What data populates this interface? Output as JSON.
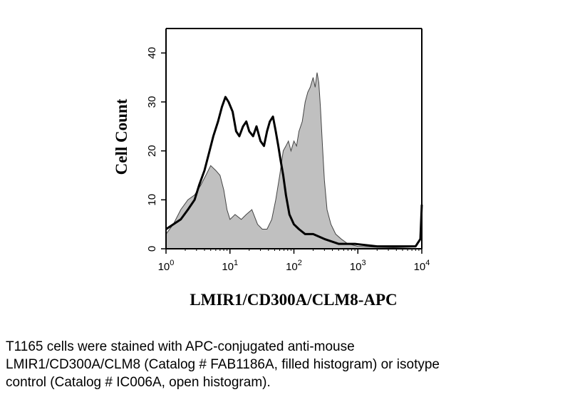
{
  "chart_data": {
    "type": "area",
    "title": "",
    "xlabel": "LMIR1/CD300A/CLM8-APC",
    "ylabel": "Cell Count",
    "x_scale": "log",
    "xlim": [
      1,
      10000
    ],
    "ylim": [
      0,
      45
    ],
    "x_ticks": [
      {
        "value": 1,
        "base": "10",
        "exp": "0"
      },
      {
        "value": 10,
        "base": "10",
        "exp": "1"
      },
      {
        "value": 100,
        "base": "10",
        "exp": "2"
      },
      {
        "value": 1000,
        "base": "10",
        "exp": "3"
      },
      {
        "value": 10000,
        "base": "10",
        "exp": "4"
      }
    ],
    "y_ticks": [
      0,
      10,
      20,
      30,
      40
    ],
    "grid": false,
    "legend": "none",
    "series": [
      {
        "style": "filled",
        "color": "#c0c0c0",
        "points": [
          [
            1,
            3
          ],
          [
            1.3,
            5
          ],
          [
            1.7,
            8
          ],
          [
            2.2,
            10
          ],
          [
            2.8,
            11
          ],
          [
            3.5,
            13
          ],
          [
            4.2,
            15
          ],
          [
            5,
            17
          ],
          [
            6,
            16
          ],
          [
            7,
            15
          ],
          [
            8,
            12
          ],
          [
            9,
            8
          ],
          [
            10,
            6
          ],
          [
            12,
            7
          ],
          [
            15,
            6
          ],
          [
            18,
            7
          ],
          [
            22,
            8
          ],
          [
            27,
            5
          ],
          [
            32,
            4
          ],
          [
            38,
            4
          ],
          [
            45,
            6
          ],
          [
            52,
            10
          ],
          [
            60,
            15
          ],
          [
            68,
            20
          ],
          [
            75,
            21
          ],
          [
            82,
            22
          ],
          [
            90,
            20
          ],
          [
            100,
            22
          ],
          [
            110,
            21
          ],
          [
            120,
            24
          ],
          [
            135,
            26
          ],
          [
            150,
            30
          ],
          [
            165,
            32
          ],
          [
            180,
            33
          ],
          [
            200,
            35
          ],
          [
            215,
            33
          ],
          [
            230,
            36
          ],
          [
            245,
            34
          ],
          [
            260,
            29
          ],
          [
            280,
            21
          ],
          [
            300,
            14
          ],
          [
            330,
            8
          ],
          [
            380,
            5
          ],
          [
            450,
            3
          ],
          [
            550,
            2
          ],
          [
            700,
            1
          ],
          [
            1000,
            0.5
          ],
          [
            2000,
            0.3
          ],
          [
            4000,
            0.2
          ],
          [
            10000,
            0
          ]
        ]
      },
      {
        "style": "open",
        "color": "#000000",
        "points": [
          [
            1,
            4
          ],
          [
            1.3,
            5
          ],
          [
            1.7,
            6
          ],
          [
            2.2,
            8
          ],
          [
            2.8,
            10
          ],
          [
            3.3,
            13
          ],
          [
            4,
            16
          ],
          [
            4.8,
            20
          ],
          [
            5.5,
            23
          ],
          [
            6.5,
            26
          ],
          [
            7.5,
            29
          ],
          [
            8.5,
            31
          ],
          [
            9.5,
            30
          ],
          [
            11,
            28
          ],
          [
            12.5,
            24
          ],
          [
            14,
            23
          ],
          [
            16,
            25
          ],
          [
            18,
            26
          ],
          [
            20,
            24
          ],
          [
            23,
            23
          ],
          [
            26,
            25
          ],
          [
            30,
            22
          ],
          [
            34,
            21
          ],
          [
            38,
            24
          ],
          [
            42,
            26
          ],
          [
            47,
            27
          ],
          [
            52,
            24
          ],
          [
            57,
            21
          ],
          [
            62,
            18
          ],
          [
            68,
            15
          ],
          [
            75,
            11
          ],
          [
            85,
            7
          ],
          [
            100,
            5
          ],
          [
            120,
            4
          ],
          [
            150,
            3
          ],
          [
            200,
            3
          ],
          [
            300,
            2
          ],
          [
            500,
            1
          ],
          [
            900,
            1
          ],
          [
            2000,
            0.5
          ],
          [
            5000,
            0.5
          ],
          [
            8000,
            0.5
          ],
          [
            9500,
            2
          ],
          [
            10000,
            9
          ]
        ]
      }
    ]
  },
  "caption": {
    "line1": "T1165 cells were stained with APC-conjugated anti-mouse",
    "line2": "LMIR1/CD300A/CLM8 (Catalog # FAB1186A, filled histogram) or isotype",
    "line3": "control (Catalog # IC006A, open histogram)."
  }
}
